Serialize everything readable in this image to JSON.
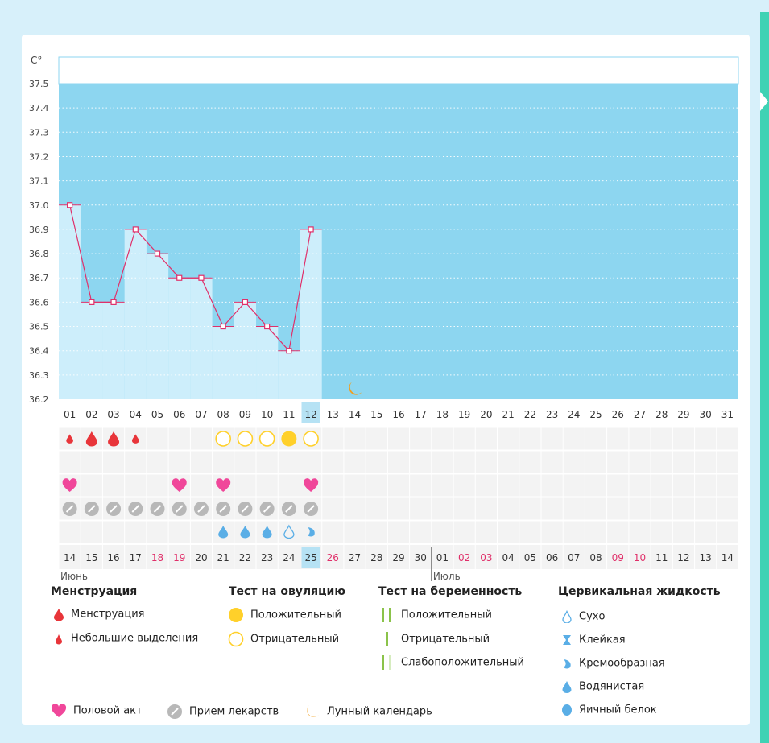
{
  "chart_data": {
    "type": "line",
    "ylabel": "C°",
    "ylim": [
      36.2,
      37.5
    ],
    "yticks": [
      "37.5",
      "37.4",
      "37.3",
      "37.2",
      "37.1",
      "37.0",
      "36.9",
      "36.8",
      "36.7",
      "36.6",
      "36.5",
      "36.4",
      "36.3",
      "36.2"
    ],
    "cycle_days": [
      "01",
      "02",
      "03",
      "04",
      "05",
      "06",
      "07",
      "08",
      "09",
      "10",
      "11",
      "12",
      "13",
      "14",
      "15",
      "16",
      "17",
      "18",
      "19",
      "20",
      "21",
      "22",
      "23",
      "24",
      "25",
      "26",
      "27",
      "28",
      "29",
      "30",
      "31"
    ],
    "current_day": "12",
    "temperatures": [
      37.0,
      36.6,
      36.6,
      36.9,
      36.8,
      36.7,
      36.7,
      36.5,
      36.6,
      36.5,
      36.4,
      36.9
    ],
    "menstruation": [
      "light",
      "heavy",
      "heavy",
      "light"
    ],
    "ovulation_tests": [
      "",
      "",
      "",
      "",
      "",
      "",
      "",
      "negative",
      "negative",
      "negative",
      "positive",
      "negative"
    ],
    "intercourse_days": [
      "01",
      "06",
      "08",
      "12"
    ],
    "medication_days": [
      "01",
      "02",
      "03",
      "04",
      "05",
      "06",
      "07",
      "08",
      "09",
      "10",
      "11",
      "12"
    ],
    "cervical_fluid": [
      "",
      "",
      "",
      "",
      "",
      "",
      "",
      "watery",
      "watery",
      "watery",
      "dry",
      "creamy"
    ],
    "moon_day": "14",
    "dates": [
      "14",
      "15",
      "16",
      "17",
      "18",
      "19",
      "20",
      "21",
      "22",
      "23",
      "24",
      "25",
      "26",
      "27",
      "28",
      "29",
      "30",
      "01",
      "02",
      "03",
      "04",
      "05",
      "06",
      "07",
      "08",
      "09",
      "10",
      "11",
      "12",
      "13",
      "14"
    ],
    "red_dates_idx": [
      4,
      5,
      12,
      18,
      19,
      25,
      26
    ],
    "today_idx": 11,
    "months": [
      {
        "label": "Июнь",
        "start_idx": 0
      },
      {
        "label": "Июль",
        "start_idx": 17
      }
    ],
    "colors": {
      "area": "#8dd6f0",
      "bar": "#cdeefb",
      "line": "#e0306a",
      "menstr": "#e8353a",
      "ovu": "#ffd02a",
      "heart": "#f0479a",
      "pill": "#b8b8b8",
      "drop": "#5aaee6",
      "moon": "#f0a020",
      "today": "#b6e2f4",
      "grid": "#f3f3f3"
    }
  },
  "legend": {
    "menstruation": {
      "title": "Менструация",
      "items": [
        "Менструация",
        "Небольшие выделения"
      ]
    },
    "ovulation": {
      "title": "Тест на овуляцию",
      "items": [
        "Положительный",
        "Отрицательный"
      ]
    },
    "pregnancy": {
      "title": "Тест на беременность",
      "items": [
        "Положительный",
        "Отрицательный",
        "Слабоположительный"
      ]
    },
    "fluid": {
      "title": "Цервикальная жидкость",
      "items": [
        "Сухо",
        "Клейкая",
        "Кремообразная",
        "Водянистая",
        "Яичный белок"
      ]
    },
    "bottom": [
      "Половой акт",
      "Прием лекарств",
      "Лунный календарь"
    ]
  }
}
